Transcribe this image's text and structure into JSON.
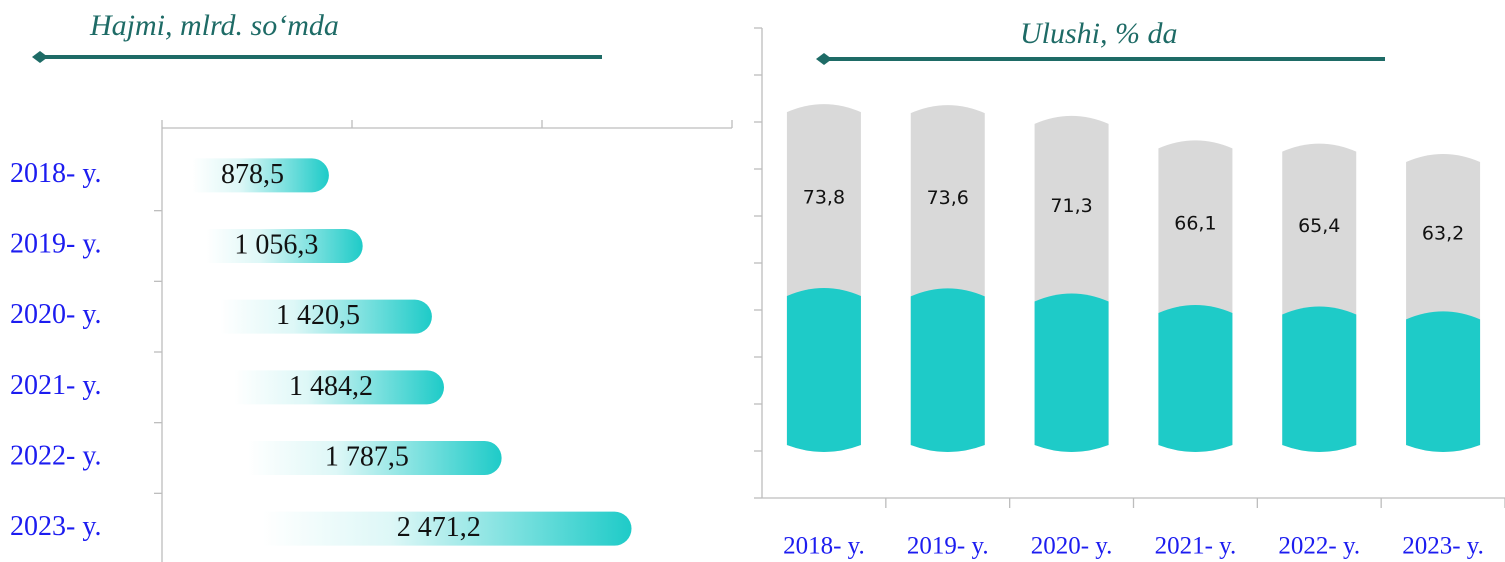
{
  "chart_data": [
    {
      "type": "hbar",
      "title": "Hajmi, mlrd. so‘mda",
      "categories": [
        "2018- y.",
        "2019- y.",
        "2020- y.",
        "2021- y.",
        "2022- y.",
        "2023- y."
      ],
      "values": [
        878.5,
        1056.3,
        1420.5,
        1484.2,
        1787.5,
        2471.2
      ],
      "value_labels": [
        "878,5",
        "1 056,3",
        "1 420,5",
        "1 484,2",
        "1 787,5",
        "2 471,2"
      ],
      "color": "#1ecbc8",
      "xlim": [
        0,
        3000
      ],
      "xticks": [
        0,
        1000,
        2000,
        3000
      ]
    },
    {
      "type": "bar",
      "title": "Ulushi, % da",
      "categories": [
        "2018- y.",
        "2019- y.",
        "2020- y.",
        "2021- y.",
        "2022- y.",
        "2023- y."
      ],
      "values": [
        73.8,
        73.6,
        71.3,
        66.1,
        65.4,
        63.2
      ],
      "value_labels": [
        "73,8",
        "73,6",
        "71,3",
        "66,1",
        "65,4",
        "63,2"
      ],
      "color": "#d9d9d9",
      "accent": "#1ecbc8",
      "ylim": [
        -10,
        90
      ],
      "yticks": [
        -10,
        0,
        10,
        20,
        30,
        40,
        50,
        60,
        70,
        80,
        90
      ]
    }
  ]
}
